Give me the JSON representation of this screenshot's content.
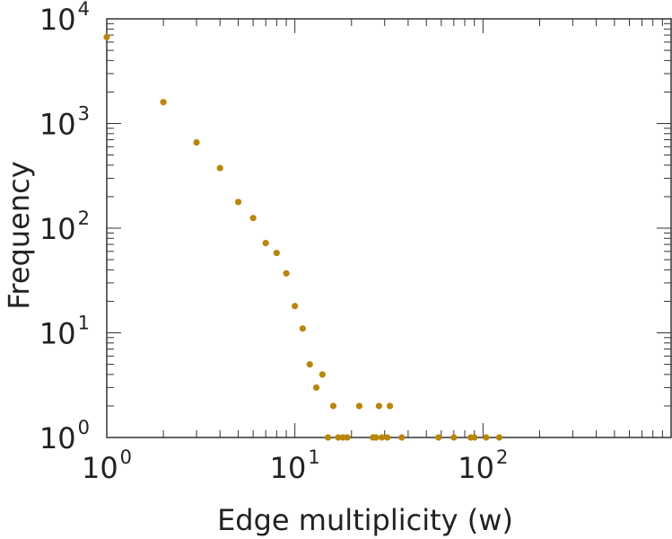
{
  "chart_data": {
    "type": "scatter",
    "xlabel": "Edge multiplicity (w)",
    "ylabel": "Frequency",
    "x_scale": "log",
    "y_scale": "log",
    "xlim": [
      1,
      1000
    ],
    "ylim": [
      1,
      10000
    ],
    "x_ticks": [
      {
        "base": "10",
        "exp": "0"
      },
      {
        "base": "10",
        "exp": "1"
      },
      {
        "base": "10",
        "exp": "2"
      }
    ],
    "y_ticks": [
      {
        "base": "10",
        "exp": "0"
      },
      {
        "base": "10",
        "exp": "1"
      },
      {
        "base": "10",
        "exp": "2"
      },
      {
        "base": "10",
        "exp": "3"
      },
      {
        "base": "10",
        "exp": "4"
      }
    ],
    "marker_color": "#b8860b",
    "grid": false,
    "points": [
      {
        "x": 1,
        "y": 6700
      },
      {
        "x": 2,
        "y": 1600
      },
      {
        "x": 3,
        "y": 660
      },
      {
        "x": 4,
        "y": 375
      },
      {
        "x": 5,
        "y": 178
      },
      {
        "x": 6,
        "y": 125
      },
      {
        "x": 7,
        "y": 72
      },
      {
        "x": 8,
        "y": 58
      },
      {
        "x": 9,
        "y": 37
      },
      {
        "x": 10,
        "y": 18
      },
      {
        "x": 11,
        "y": 11
      },
      {
        "x": 12,
        "y": 5
      },
      {
        "x": 13,
        "y": 3
      },
      {
        "x": 14,
        "y": 4
      },
      {
        "x": 15,
        "y": 1
      },
      {
        "x": 16,
        "y": 2
      },
      {
        "x": 17,
        "y": 1
      },
      {
        "x": 18,
        "y": 1
      },
      {
        "x": 19,
        "y": 1
      },
      {
        "x": 22,
        "y": 2
      },
      {
        "x": 26,
        "y": 1
      },
      {
        "x": 27,
        "y": 1
      },
      {
        "x": 28,
        "y": 2
      },
      {
        "x": 29,
        "y": 1
      },
      {
        "x": 31,
        "y": 1
      },
      {
        "x": 32,
        "y": 2
      },
      {
        "x": 37,
        "y": 1
      },
      {
        "x": 58,
        "y": 1
      },
      {
        "x": 70,
        "y": 1
      },
      {
        "x": 86,
        "y": 1
      },
      {
        "x": 90,
        "y": 1
      },
      {
        "x": 104,
        "y": 1
      },
      {
        "x": 122,
        "y": 1
      }
    ]
  }
}
